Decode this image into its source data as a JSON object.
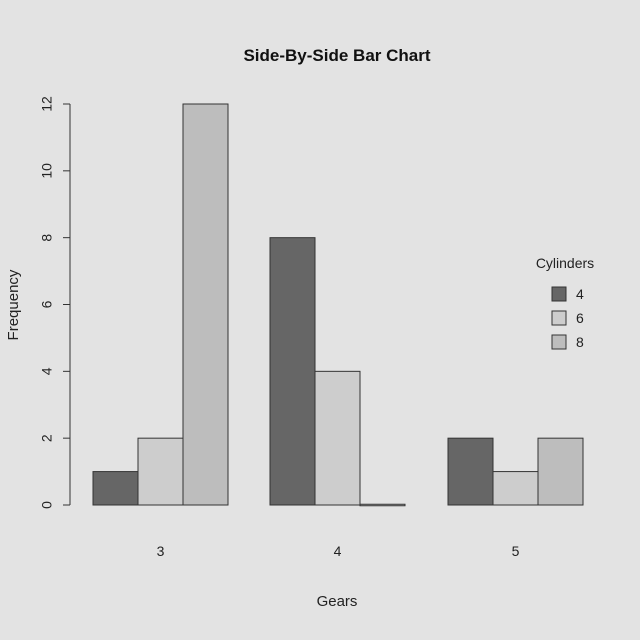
{
  "chart_data": {
    "type": "bar",
    "title": "Side-By-Side Bar Chart",
    "xlabel": "Gears",
    "ylabel": "Frequency",
    "categories": [
      "3",
      "4",
      "5"
    ],
    "ylim": [
      0,
      12
    ],
    "yticks": [
      "0",
      "2",
      "4",
      "6",
      "8",
      "10",
      "12"
    ],
    "legend": {
      "title": "Cylinders",
      "position": "right"
    },
    "series": [
      {
        "name": "4",
        "color": "#666666",
        "values": [
          1,
          8,
          2
        ]
      },
      {
        "name": "6",
        "color": "#cdcdcd",
        "values": [
          2,
          4,
          1
        ]
      },
      {
        "name": "8",
        "color": "#bdbdbd",
        "values": [
          12,
          0,
          2
        ]
      }
    ]
  }
}
